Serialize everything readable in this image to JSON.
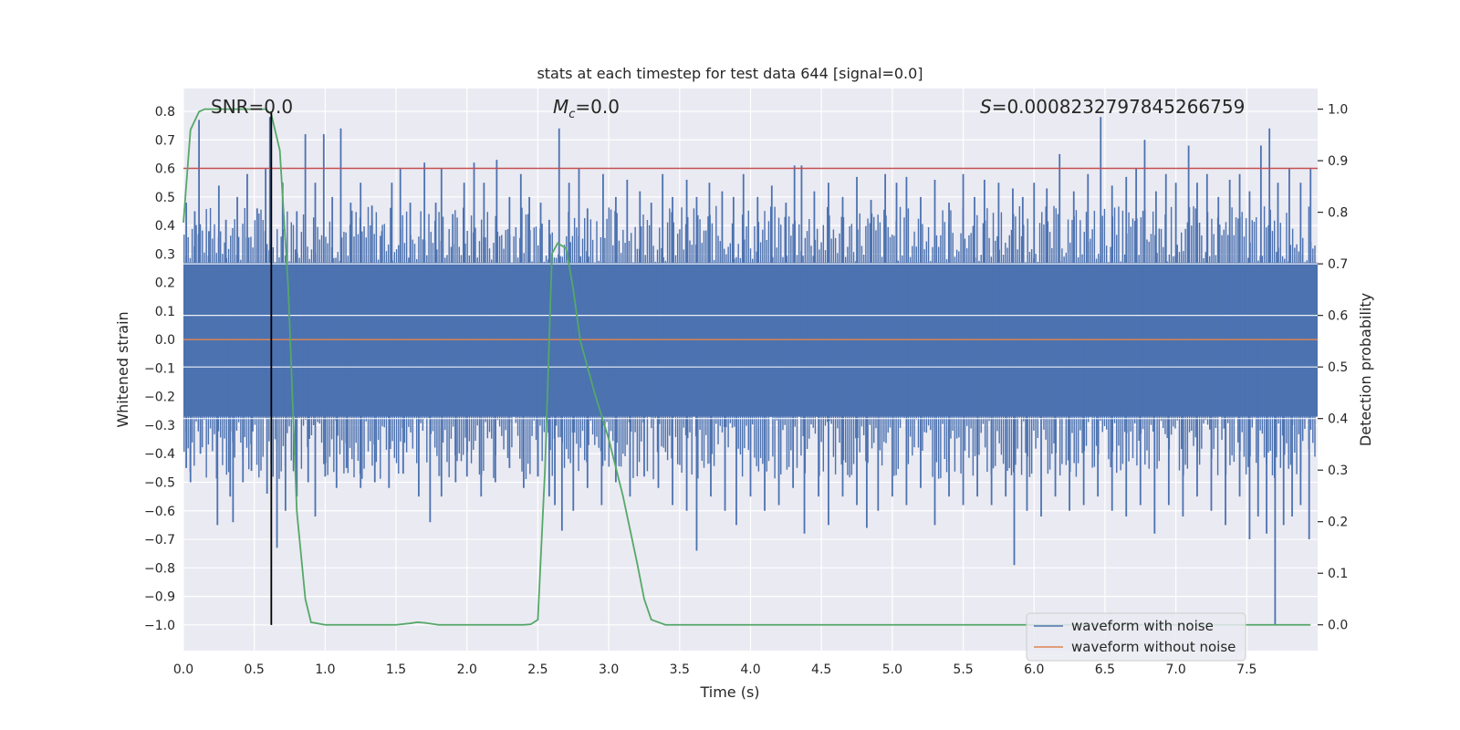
{
  "chart_data": {
    "type": "line",
    "title": "stats at each timestep for test data 644 [signal=0.0]",
    "xlabel": "Time (s)",
    "ylabel_left": "Whitened strain",
    "ylabel_right": "Detection probability",
    "xlim": [
      0.0,
      8.0
    ],
    "ylim_left": [
      -1.09,
      0.88
    ],
    "ylim_right": [
      -0.05,
      1.04
    ],
    "x_ticks": [
      "0.0",
      "0.5",
      "1.0",
      "1.5",
      "2.0",
      "2.5",
      "3.0",
      "3.5",
      "4.0",
      "4.5",
      "5.0",
      "5.5",
      "6.0",
      "6.5",
      "7.0",
      "7.5"
    ],
    "y_ticks_left": [
      "0.8",
      "0.7",
      "0.6",
      "0.5",
      "0.4",
      "0.3",
      "0.2",
      "0.1",
      "0.0",
      "−0.1",
      "−0.2",
      "−0.3",
      "−0.4",
      "−0.5",
      "−0.6",
      "−0.7",
      "−0.8",
      "−0.9",
      "−1.0"
    ],
    "y_ticks_right": [
      "1.0",
      "0.9",
      "0.8",
      "0.7",
      "0.6",
      "0.5",
      "0.4",
      "0.3",
      "0.2",
      "0.1",
      "0.0"
    ],
    "grid": true,
    "legend_position": "lower-right",
    "annotations": {
      "snr_text": "SNR=0.0",
      "mc_symbol": "M",
      "mc_sub": "c",
      "mc_value": "=0.0",
      "s_symbol": "S",
      "s_value": "=0.0008232797845266759"
    },
    "threshold_line": {
      "axis": "left",
      "y": 0.6,
      "color": "#c44e52"
    },
    "vertical_marker": {
      "x": 0.62,
      "y_from": -1.0,
      "y_to": 0.8,
      "color": "#000000"
    },
    "series": [
      {
        "name": "waveform with noise",
        "color": "#4c72b0",
        "axis": "left",
        "description_core_amplitude": 0.27,
        "spikes_positive": [
          [
            0.02,
            0.48
          ],
          [
            0.08,
            0.45
          ],
          [
            0.11,
            0.77
          ],
          [
            0.18,
            0.38
          ],
          [
            0.25,
            0.54
          ],
          [
            0.3,
            0.42
          ],
          [
            0.38,
            0.5
          ],
          [
            0.45,
            0.58
          ],
          [
            0.52,
            0.46
          ],
          [
            0.58,
            0.6
          ],
          [
            0.61,
            0.78
          ],
          [
            0.7,
            0.55
          ],
          [
            0.8,
            0.45
          ],
          [
            0.86,
            0.72
          ],
          [
            0.93,
            0.55
          ],
          [
            0.99,
            0.72
          ],
          [
            1.05,
            0.5
          ],
          [
            1.11,
            0.74
          ],
          [
            1.18,
            0.48
          ],
          [
            1.25,
            0.55
          ],
          [
            1.33,
            0.47
          ],
          [
            1.4,
            0.38
          ],
          [
            1.47,
            0.55
          ],
          [
            1.53,
            0.6
          ],
          [
            1.6,
            0.48
          ],
          [
            1.7,
            0.62
          ],
          [
            1.78,
            0.48
          ],
          [
            1.82,
            0.6
          ],
          [
            1.9,
            0.44
          ],
          [
            1.98,
            0.55
          ],
          [
            2.05,
            0.62
          ],
          [
            2.12,
            0.55
          ],
          [
            2.21,
            0.63
          ],
          [
            2.3,
            0.5
          ],
          [
            2.38,
            0.58
          ],
          [
            2.44,
            0.5
          ],
          [
            2.52,
            0.48
          ],
          [
            2.58,
            0.42
          ],
          [
            2.65,
            0.74
          ],
          [
            2.72,
            0.55
          ],
          [
            2.79,
            0.6
          ],
          [
            2.85,
            0.46
          ],
          [
            2.96,
            0.58
          ],
          [
            3.05,
            0.5
          ],
          [
            3.13,
            0.56
          ],
          [
            3.22,
            0.52
          ],
          [
            3.3,
            0.48
          ],
          [
            3.38,
            0.58
          ],
          [
            3.45,
            0.5
          ],
          [
            3.55,
            0.56
          ],
          [
            3.62,
            0.5
          ],
          [
            3.71,
            0.55
          ],
          [
            3.8,
            0.52
          ],
          [
            3.88,
            0.5
          ],
          [
            3.95,
            0.58
          ],
          [
            4.05,
            0.5
          ],
          [
            4.15,
            0.54
          ],
          [
            4.25,
            0.48
          ],
          [
            4.31,
            0.61
          ],
          [
            4.36,
            0.61
          ],
          [
            4.45,
            0.52
          ],
          [
            4.55,
            0.55
          ],
          [
            4.65,
            0.5
          ],
          [
            4.75,
            0.57
          ],
          [
            4.85,
            0.49
          ],
          [
            4.95,
            0.58
          ],
          [
            5.03,
            0.55
          ],
          [
            5.1,
            0.57
          ],
          [
            5.2,
            0.5
          ],
          [
            5.3,
            0.56
          ],
          [
            5.4,
            0.48
          ],
          [
            5.5,
            0.58
          ],
          [
            5.58,
            0.5
          ],
          [
            5.65,
            0.56
          ],
          [
            5.75,
            0.55
          ],
          [
            5.85,
            0.53
          ],
          [
            5.92,
            0.5
          ],
          [
            6.0,
            0.55
          ],
          [
            6.09,
            0.53
          ],
          [
            6.18,
            0.65
          ],
          [
            6.28,
            0.52
          ],
          [
            6.38,
            0.58
          ],
          [
            6.47,
            0.78
          ],
          [
            6.55,
            0.54
          ],
          [
            6.65,
            0.57
          ],
          [
            6.72,
            0.6
          ],
          [
            6.78,
            0.7
          ],
          [
            6.86,
            0.52
          ],
          [
            6.93,
            0.58
          ],
          [
            7.0,
            0.55
          ],
          [
            7.09,
            0.68
          ],
          [
            7.15,
            0.55
          ],
          [
            7.22,
            0.58
          ],
          [
            7.3,
            0.5
          ],
          [
            7.38,
            0.56
          ],
          [
            7.45,
            0.58
          ],
          [
            7.52,
            0.52
          ],
          [
            7.6,
            0.68
          ],
          [
            7.66,
            0.74
          ],
          [
            7.72,
            0.55
          ],
          [
            7.8,
            0.6
          ],
          [
            7.88,
            0.55
          ],
          [
            7.95,
            0.6
          ]
        ],
        "spikes_negative": [
          [
            0.02,
            -0.45
          ],
          [
            0.05,
            -0.5
          ],
          [
            0.12,
            -0.4
          ],
          [
            0.24,
            -0.65
          ],
          [
            0.33,
            -0.55
          ],
          [
            0.35,
            -0.64
          ],
          [
            0.42,
            -0.5
          ],
          [
            0.48,
            -0.46
          ],
          [
            0.59,
            -0.54
          ],
          [
            0.66,
            -0.73
          ],
          [
            0.72,
            -0.6
          ],
          [
            0.8,
            -0.55
          ],
          [
            0.88,
            -0.5
          ],
          [
            0.93,
            -0.62
          ],
          [
            1.0,
            -0.48
          ],
          [
            1.08,
            -0.52
          ],
          [
            1.15,
            -0.45
          ],
          [
            1.25,
            -0.52
          ],
          [
            1.35,
            -0.5
          ],
          [
            1.45,
            -0.52
          ],
          [
            1.55,
            -0.47
          ],
          [
            1.66,
            -0.55
          ],
          [
            1.74,
            -0.64
          ],
          [
            1.82,
            -0.55
          ],
          [
            1.92,
            -0.5
          ],
          [
            2.0,
            -0.48
          ],
          [
            2.1,
            -0.55
          ],
          [
            2.2,
            -0.5
          ],
          [
            2.3,
            -0.45
          ],
          [
            2.4,
            -0.52
          ],
          [
            2.5,
            -0.48
          ],
          [
            2.58,
            -0.55
          ],
          [
            2.62,
            -0.58
          ],
          [
            2.67,
            -0.67
          ],
          [
            2.75,
            -0.6
          ],
          [
            2.85,
            -0.52
          ],
          [
            2.95,
            -0.58
          ],
          [
            3.05,
            -0.5
          ],
          [
            3.15,
            -0.55
          ],
          [
            3.25,
            -0.48
          ],
          [
            3.35,
            -0.52
          ],
          [
            3.45,
            -0.58
          ],
          [
            3.55,
            -0.6
          ],
          [
            3.62,
            -0.74
          ],
          [
            3.72,
            -0.55
          ],
          [
            3.82,
            -0.6
          ],
          [
            3.9,
            -0.65
          ],
          [
            4.0,
            -0.55
          ],
          [
            4.1,
            -0.6
          ],
          [
            4.2,
            -0.58
          ],
          [
            4.3,
            -0.52
          ],
          [
            4.38,
            -0.68
          ],
          [
            4.48,
            -0.55
          ],
          [
            4.55,
            -0.65
          ],
          [
            4.65,
            -0.55
          ],
          [
            4.75,
            -0.58
          ],
          [
            4.82,
            -0.66
          ],
          [
            4.9,
            -0.6
          ],
          [
            5.0,
            -0.55
          ],
          [
            5.1,
            -0.58
          ],
          [
            5.2,
            -0.52
          ],
          [
            5.3,
            -0.65
          ],
          [
            5.4,
            -0.55
          ],
          [
            5.5,
            -0.58
          ],
          [
            5.6,
            -0.55
          ],
          [
            5.7,
            -0.58
          ],
          [
            5.8,
            -0.55
          ],
          [
            5.86,
            -0.79
          ],
          [
            5.95,
            -0.6
          ],
          [
            6.05,
            -0.62
          ],
          [
            6.15,
            -0.55
          ],
          [
            6.25,
            -0.6
          ],
          [
            6.35,
            -0.58
          ],
          [
            6.45,
            -0.55
          ],
          [
            6.55,
            -0.6
          ],
          [
            6.65,
            -0.62
          ],
          [
            6.75,
            -0.58
          ],
          [
            6.85,
            -0.68
          ],
          [
            6.95,
            -0.58
          ],
          [
            7.05,
            -0.62
          ],
          [
            7.15,
            -0.55
          ],
          [
            7.25,
            -0.6
          ],
          [
            7.35,
            -0.65
          ],
          [
            7.45,
            -0.55
          ],
          [
            7.52,
            -0.7
          ],
          [
            7.58,
            -0.62
          ],
          [
            7.64,
            -0.68
          ],
          [
            7.7,
            -1.0
          ],
          [
            7.76,
            -0.65
          ],
          [
            7.82,
            -0.62
          ],
          [
            7.88,
            -0.58
          ],
          [
            7.94,
            -0.7
          ]
        ]
      },
      {
        "name": "waveform without noise",
        "color": "#dd8452",
        "axis": "left",
        "x": [
          0.0,
          8.0
        ],
        "y": [
          0.0,
          0.0
        ]
      },
      {
        "name": "",
        "color": "#55a868",
        "axis": "right",
        "x": [
          0.0,
          0.05,
          0.11,
          0.15,
          0.2,
          0.3,
          0.4,
          0.5,
          0.58,
          0.62,
          0.68,
          0.74,
          0.8,
          0.86,
          0.9,
          1.0,
          1.2,
          1.5,
          1.6,
          1.65,
          1.7,
          1.8,
          2.0,
          2.2,
          2.4,
          2.45,
          2.5,
          2.55,
          2.6,
          2.64,
          2.7,
          2.75,
          2.8,
          2.9,
          3.0,
          3.1,
          3.2,
          3.25,
          3.3,
          3.4,
          3.6,
          4.0,
          5.0,
          6.0,
          7.0,
          7.5,
          7.7,
          7.8,
          7.95
        ],
        "y": [
          0.78,
          0.96,
          0.995,
          1.0,
          1.0,
          1.0,
          1.0,
          1.0,
          1.0,
          0.99,
          0.92,
          0.65,
          0.22,
          0.05,
          0.005,
          0.0,
          0.0,
          0.0,
          0.003,
          0.005,
          0.004,
          0.0,
          0.0,
          0.0,
          0.0,
          0.001,
          0.01,
          0.3,
          0.72,
          0.74,
          0.73,
          0.65,
          0.55,
          0.45,
          0.36,
          0.25,
          0.12,
          0.05,
          0.01,
          0.0,
          0.0,
          0.0,
          0.0,
          0.0,
          0.0,
          0.0,
          0.0,
          0.0,
          0.0
        ]
      }
    ]
  }
}
